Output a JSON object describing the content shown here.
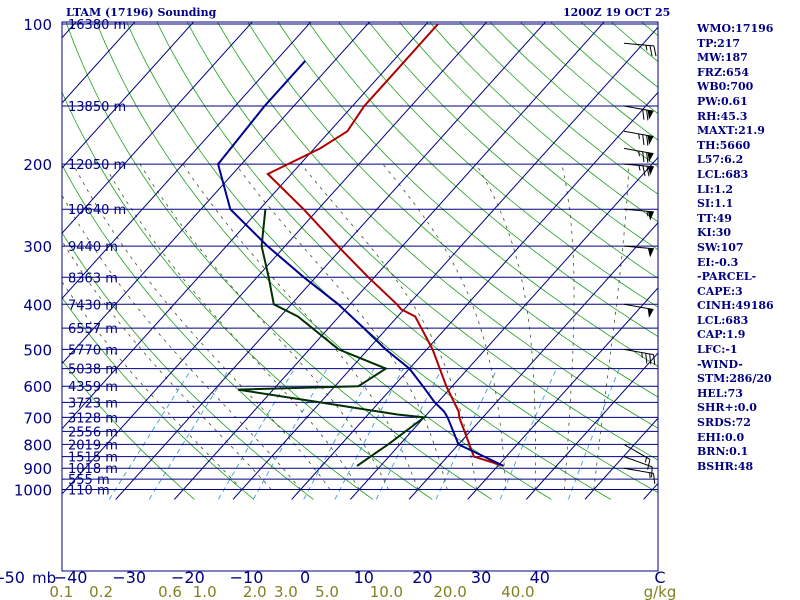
{
  "header": {
    "station": "LTAM (17196) Sounding",
    "time": "1200Z 19 OCT 25"
  },
  "indices": [
    "WMO:17196",
    "TP:217",
    "MW:187",
    "FRZ:654",
    "WB0:700",
    "PW:0.61",
    "RH:45.3",
    "MAXT:21.9",
    "TH:5660",
    "L57:6.2",
    "LCL:683",
    "LI:1.2",
    "SI:1.1",
    "TT:49",
    "KI:30",
    "SW:107",
    "EI:-0.3",
    "-PARCEL-",
    "CAPE:3",
    "CINH:49186",
    "LCL:683",
    "CAP:1.9",
    "LFC:-1",
    "-WIND-",
    "STM:286/20",
    "HEL:73",
    "SHR+:0.0",
    "SRDS:72",
    "EHI:0.0",
    "BRN:0.1",
    "BSHR:48"
  ],
  "chart_data": {
    "type": "line",
    "title": "LTAM (17196) Sounding 1200Z 19 OCT 25",
    "x_unit": "C",
    "mr_unit": "g/kg",
    "x_range": [
      -50,
      50
    ],
    "p_range": [
      100,
      1050
    ],
    "pressure_ticks": [
      100,
      200,
      300,
      400,
      500,
      600,
      700,
      800,
      900,
      1000
    ],
    "pressure_labels": [
      "100",
      "200",
      "300",
      "400",
      "500",
      "600",
      "700",
      "800",
      "900",
      "1000"
    ],
    "x_tick_values": [
      -50,
      -40,
      -30,
      -20,
      -10,
      0,
      10,
      20,
      30,
      40
    ],
    "x_tick_labels": [
      "-50",
      "−40",
      "−30",
      "−20",
      "−10",
      "0",
      "10",
      "20",
      "30",
      "40"
    ],
    "mb_label": "mb",
    "mixing_ratio_values": [
      0.1,
      0.2,
      0.6,
      1.0,
      2.0,
      3.0,
      5.0,
      10.0,
      20.0,
      40.0
    ],
    "mixing_ratio_labels": [
      "0.1",
      "0.2",
      "0.6",
      "1.0",
      "2.0",
      "3.0",
      "5.0",
      "10.0",
      "20.0",
      "40.0"
    ],
    "heights": [
      {
        "p": 100,
        "label": "16380 m"
      },
      {
        "p": 150,
        "label": "13850 m"
      },
      {
        "p": 200,
        "label": "12050 m"
      },
      {
        "p": 250,
        "label": "10640 m"
      },
      {
        "p": 300,
        "label": "9440 m"
      },
      {
        "p": 350,
        "label": "8363 m"
      },
      {
        "p": 400,
        "label": "7430 m"
      },
      {
        "p": 450,
        "label": "6557 m"
      },
      {
        "p": 500,
        "label": "5770 m"
      },
      {
        "p": 550,
        "label": "5038 m"
      },
      {
        "p": 600,
        "label": "4359 m"
      },
      {
        "p": 650,
        "label": "3723 m"
      },
      {
        "p": 700,
        "label": "3128 m"
      },
      {
        "p": 750,
        "label": "2556 m"
      },
      {
        "p": 800,
        "label": "2019 m"
      },
      {
        "p": 850,
        "label": "1515 m"
      },
      {
        "p": 900,
        "label": "1018 m"
      },
      {
        "p": 950,
        "label": "555 m"
      },
      {
        "p": 1000,
        "label": "110 m"
      }
    ],
    "series": [
      {
        "name": "Temperature",
        "color": "#b00000",
        "points": [
          {
            "p": 100,
            "t": -58
          },
          {
            "p": 120,
            "t": -58
          },
          {
            "p": 150,
            "t": -58
          },
          {
            "p": 170,
            "t": -57
          },
          {
            "p": 185,
            "t": -59
          },
          {
            "p": 210,
            "t": -64
          },
          {
            "p": 250,
            "t": -52.5
          },
          {
            "p": 300,
            "t": -41
          },
          {
            "p": 350,
            "t": -31
          },
          {
            "p": 400,
            "t": -22
          },
          {
            "p": 410,
            "t": -20.5
          },
          {
            "p": 425,
            "t": -17
          },
          {
            "p": 500,
            "t": -9
          },
          {
            "p": 600,
            "t": -1
          },
          {
            "p": 680,
            "t": 5
          },
          {
            "p": 700,
            "t": 6
          },
          {
            "p": 850,
            "t": 14.5
          },
          {
            "p": 890,
            "t": 21
          }
        ]
      },
      {
        "name": "Dewpoint",
        "color": "#003000",
        "points": [
          {
            "p": 250,
            "t": -59
          },
          {
            "p": 300,
            "t": -54
          },
          {
            "p": 350,
            "t": -48
          },
          {
            "p": 400,
            "t": -43
          },
          {
            "p": 425,
            "t": -37
          },
          {
            "p": 500,
            "t": -25
          },
          {
            "p": 550,
            "t": -14
          },
          {
            "p": 600,
            "t": -16
          },
          {
            "p": 610,
            "t": -36
          },
          {
            "p": 650,
            "t": -20
          },
          {
            "p": 690,
            "t": -5
          },
          {
            "p": 700,
            "t": 0
          },
          {
            "p": 800,
            "t": -2
          },
          {
            "p": 890,
            "t": -4
          }
        ]
      },
      {
        "name": "Parcel",
        "color": "#000090",
        "points": [
          {
            "p": 120,
            "t": -75
          },
          {
            "p": 150,
            "t": -75
          },
          {
            "p": 200,
            "t": -74
          },
          {
            "p": 250,
            "t": -65
          },
          {
            "p": 300,
            "t": -53
          },
          {
            "p": 350,
            "t": -42
          },
          {
            "p": 400,
            "t": -32
          },
          {
            "p": 450,
            "t": -24
          },
          {
            "p": 500,
            "t": -17
          },
          {
            "p": 550,
            "t": -10
          },
          {
            "p": 600,
            "t": -5
          },
          {
            "p": 650,
            "t": -0.5
          },
          {
            "p": 680,
            "t": 2.5
          },
          {
            "p": 700,
            "t": 4
          },
          {
            "p": 800,
            "t": 10
          },
          {
            "p": 890,
            "t": 21
          }
        ]
      }
    ],
    "wind_barbs": [
      {
        "p": 110,
        "dir": 275,
        "spd": 25
      },
      {
        "p": 150,
        "dir": 280,
        "spd": 70
      },
      {
        "p": 170,
        "dir": 280,
        "spd": 75
      },
      {
        "p": 185,
        "dir": 280,
        "spd": 75
      },
      {
        "p": 200,
        "dir": 275,
        "spd": 75
      },
      {
        "p": 250,
        "dir": 275,
        "spd": 55
      },
      {
        "p": 300,
        "dir": 275,
        "spd": 50
      },
      {
        "p": 400,
        "dir": 280,
        "spd": 50
      },
      {
        "p": 500,
        "dir": 280,
        "spd": 35
      },
      {
        "p": 800,
        "dir": 300,
        "spd": 15
      },
      {
        "p": 850,
        "dir": 290,
        "spd": 10
      },
      {
        "p": 900,
        "dir": 280,
        "spd": 15
      }
    ]
  }
}
